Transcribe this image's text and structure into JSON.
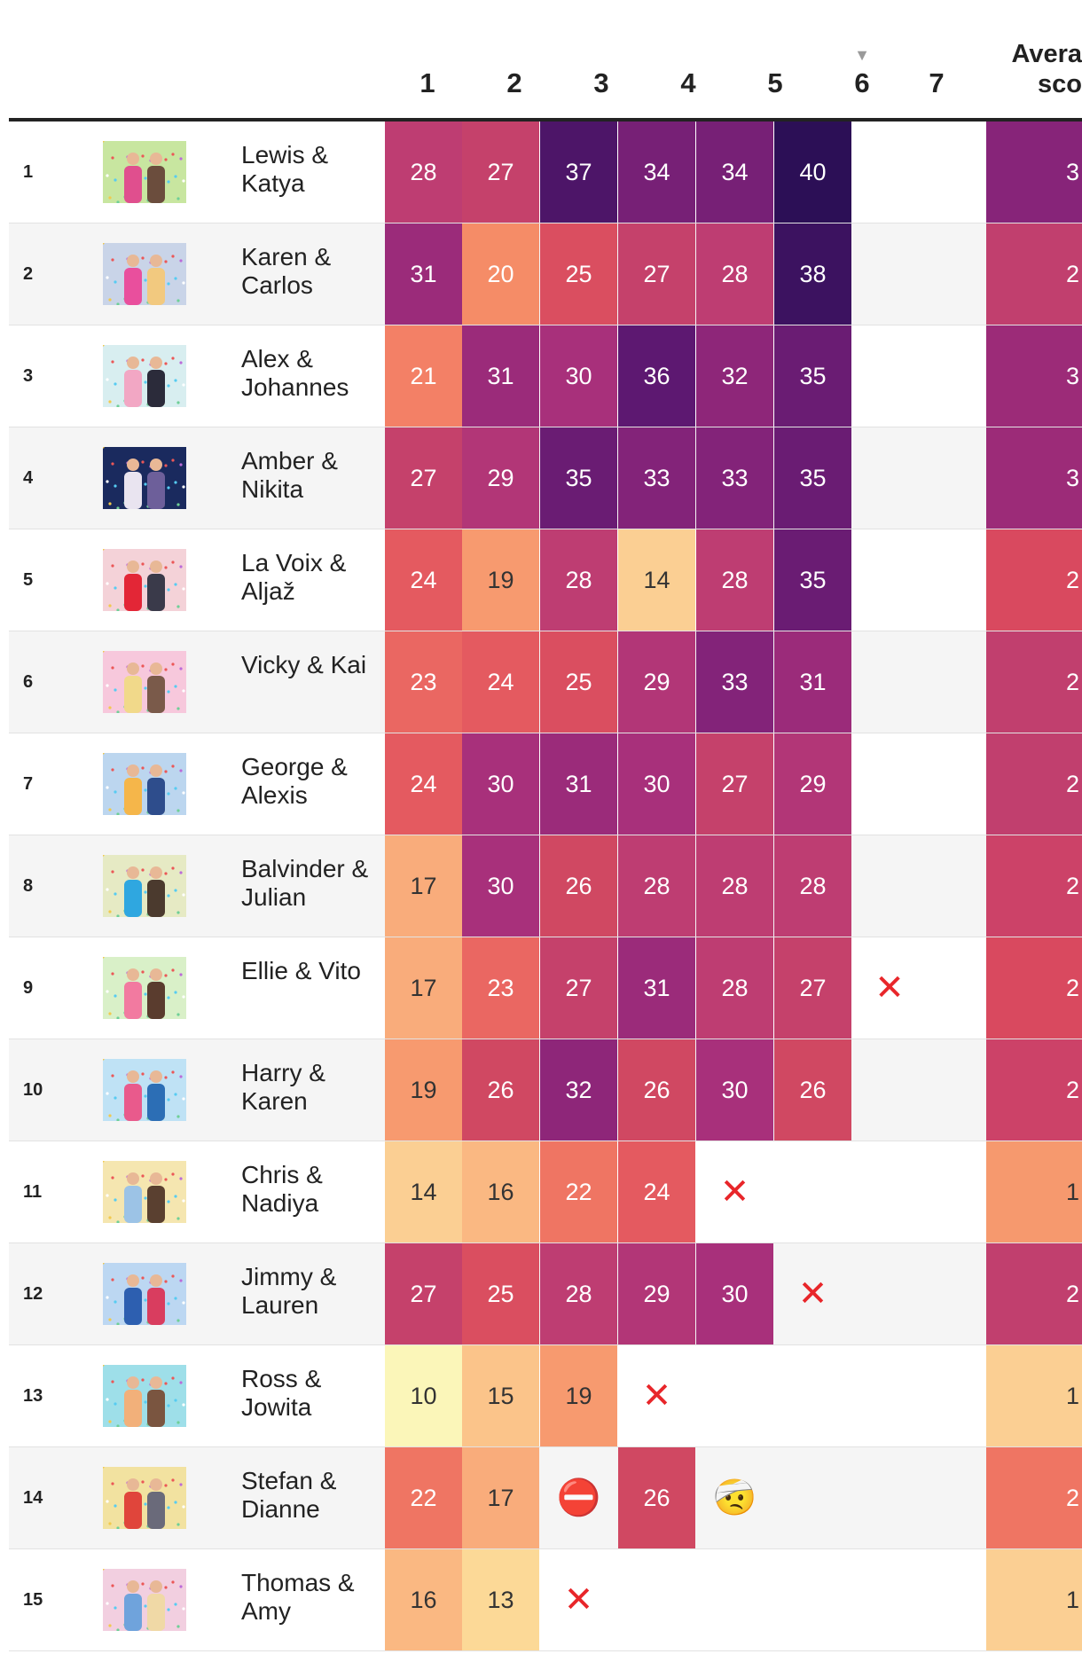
{
  "header": {
    "weeks": [
      "1",
      "2",
      "3",
      "4",
      "5",
      "6",
      "7"
    ],
    "sort_indicator": "▼",
    "avg_line1": "Avera",
    "avg_line2": "sco"
  },
  "rows": [
    {
      "rank": "1",
      "names": "Lewis & Katya",
      "scores": [
        "28",
        "27",
        "37",
        "34",
        "34",
        "40",
        ""
      ],
      "avg": "3",
      "avg_color": "#872479"
    },
    {
      "rank": "2",
      "names": "Karen & Carlos",
      "scores": [
        "31",
        "20",
        "25",
        "27",
        "28",
        "38",
        ""
      ],
      "avg": "2",
      "avg_color": "#c13f6e"
    },
    {
      "rank": "3",
      "names": "Alex & Johannes",
      "scores": [
        "21",
        "31",
        "30",
        "36",
        "32",
        "35",
        ""
      ],
      "avg": "3",
      "avg_color": "#9c2b78"
    },
    {
      "rank": "4",
      "names": "Amber & Nikita",
      "scores": [
        "27",
        "29",
        "35",
        "33",
        "33",
        "35",
        ""
      ],
      "avg": "3",
      "avg_color": "#9c2b78"
    },
    {
      "rank": "5",
      "names": "La Voix & Aljaž",
      "scores": [
        "24",
        "19",
        "28",
        "14",
        "28",
        "35",
        ""
      ],
      "avg": "2",
      "avg_color": "#d9495f"
    },
    {
      "rank": "6",
      "names": "Vicky & Kai",
      "scores": [
        "23",
        "24",
        "25",
        "29",
        "33",
        "31",
        ""
      ],
      "avg": "2",
      "avg_color": "#c13f6e"
    },
    {
      "rank": "7",
      "names": "George & Alexis",
      "scores": [
        "24",
        "30",
        "31",
        "30",
        "27",
        "29",
        ""
      ],
      "avg": "2",
      "avg_color": "#c13f6e"
    },
    {
      "rank": "8",
      "names": "Balvinder & Julian",
      "scores": [
        "17",
        "30",
        "26",
        "28",
        "28",
        "28",
        ""
      ],
      "avg": "2",
      "avg_color": "#cc4268"
    },
    {
      "rank": "9",
      "names": "Ellie & Vito",
      "scores": [
        "17",
        "23",
        "27",
        "31",
        "28",
        "27",
        "x"
      ],
      "avg": "2",
      "avg_color": "#d9495f"
    },
    {
      "rank": "10",
      "names": "Harry & Karen",
      "scores": [
        "19",
        "26",
        "32",
        "26",
        "30",
        "26",
        ""
      ],
      "avg": "2",
      "avg_color": "#cc4268"
    },
    {
      "rank": "11",
      "names": "Chris & Nadiya",
      "scores": [
        "14",
        "16",
        "22",
        "24",
        "x",
        "",
        ""
      ],
      "avg": "1",
      "avg_color": "#f6996e"
    },
    {
      "rank": "12",
      "names": "Jimmy & Lauren",
      "scores": [
        "27",
        "25",
        "28",
        "29",
        "30",
        "x",
        ""
      ],
      "avg": "2",
      "avg_color": "#c13f6e"
    },
    {
      "rank": "13",
      "names": "Ross & Jowita",
      "scores": [
        "10",
        "15",
        "19",
        "x",
        "",
        "",
        ""
      ],
      "avg": "1",
      "avg_color": "#fbcf93"
    },
    {
      "rank": "14",
      "names": "Stefan & Dianne",
      "scores": [
        "22",
        "17",
        "no-entry",
        "26",
        "injury",
        "",
        ""
      ],
      "avg": "2",
      "avg_color": "#ef7563"
    },
    {
      "rank": "15",
      "names": "Thomas & Amy",
      "scores": [
        "16",
        "13",
        "x",
        "",
        "",
        "",
        ""
      ],
      "avg": "1",
      "avg_color": "#fbcf93"
    }
  ],
  "color_scale": {
    "10": "#fbf6b9",
    "13": "#fcd997",
    "14": "#fbcf93",
    "15": "#fbc48a",
    "16": "#fab882",
    "17": "#f9ac7b",
    "19": "#f79a6f",
    "20": "#f58c67",
    "21": "#f38066",
    "22": "#ef7563",
    "23": "#ea6762",
    "24": "#e45a60",
    "25": "#da4e60",
    "26": "#d04862",
    "27": "#c5416b",
    "28": "#be3d72",
    "29": "#b23677",
    "30": "#a8307b",
    "31": "#9b2b7a",
    "32": "#8e2679",
    "33": "#832379",
    "34": "#772076",
    "35": "#6a1c73",
    "36": "#5d1871",
    "37": "#4d1568",
    "38": "#3c1260",
    "40": "#2c0f56"
  },
  "photo_palettes": [
    [
      "#c8e6a0",
      "#e04f8e",
      "#6b4d3d"
    ],
    [
      "#c9d4e8",
      "#e94f9d",
      "#f2c97f"
    ],
    [
      "#d8eef0",
      "#f2a7c4",
      "#2b2b3a"
    ],
    [
      "#1a2a5e",
      "#e9e4f0",
      "#6d5f9a"
    ],
    [
      "#f4d2d8",
      "#e32636",
      "#3a3a4a"
    ],
    [
      "#f7c8dc",
      "#f1d98a",
      "#7a5a4a"
    ],
    [
      "#bcd6ef",
      "#f5b64a",
      "#2e4d8c"
    ],
    [
      "#e6eac4",
      "#2fa7e0",
      "#4b3a2e"
    ],
    [
      "#d9f0c8",
      "#f27aa0",
      "#5a3c2e"
    ],
    [
      "#bfe2f5",
      "#e95a8c",
      "#2c6eb5"
    ],
    [
      "#f5e6b0",
      "#9cc3e6",
      "#5a4030"
    ],
    [
      "#bcd7f2",
      "#2d5fb0",
      "#d93d5f"
    ],
    [
      "#9edfe9",
      "#f2b07a",
      "#7a5540"
    ],
    [
      "#f2e2a0",
      "#e0453b",
      "#6a6a7a"
    ],
    [
      "#f2cfe0",
      "#6fa3dc",
      "#f0d9a6"
    ]
  ]
}
